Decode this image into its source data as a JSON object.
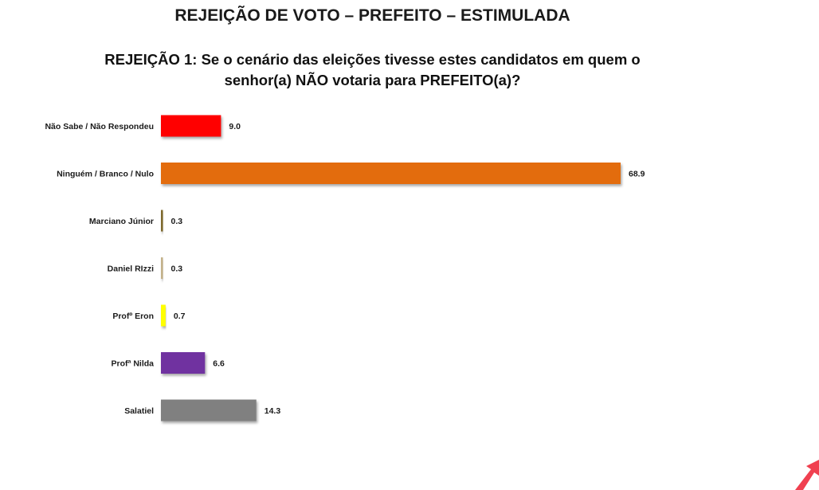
{
  "header": {
    "title": "REJEIÇÃO DE VOTO – PREFEITO – ESTIMULADA",
    "question_line1": "REJEIÇÃO 1: Se o cenário das eleições tivesse estes candidatos em quem o",
    "question_line2": "senhor(a) NÃO votaria para PREFEITO(a)?"
  },
  "chart_data": {
    "type": "bar",
    "orientation": "horizontal",
    "title": "REJEIÇÃO DE VOTO – PREFEITO – ESTIMULADA",
    "subtitle": "REJEIÇÃO 1: Se o cenário das eleições tivesse estes candidatos em quem o senhor(a) NÃO votaria para PREFEITO(a)?",
    "categories": [
      "Não Sabe / Não Respondeu",
      "Ninguém / Branco / Nulo",
      "Marciano Júnior",
      "Daniel RIzzi",
      "Profº Eron",
      "Profª Nilda",
      "Salatiel"
    ],
    "values": [
      9.0,
      68.9,
      0.3,
      0.3,
      0.7,
      6.6,
      14.3
    ],
    "value_labels": [
      "9.0",
      "68.9",
      "0.3",
      "0.3",
      "0.7",
      "6.6",
      "14.3"
    ],
    "colors": [
      "#ff0000",
      "#e36c0a",
      "#7f6a2e",
      "#c4b28a",
      "#ffff00",
      "#7030a0",
      "#808080"
    ],
    "xlim": [
      0,
      68.9
    ],
    "grid": false,
    "legend": "none",
    "xlabel": "",
    "ylabel": ""
  },
  "decoration": {
    "corner_mark_color": "#f04050",
    "corner_mark_icon": "red-arrow-logo-icon"
  }
}
